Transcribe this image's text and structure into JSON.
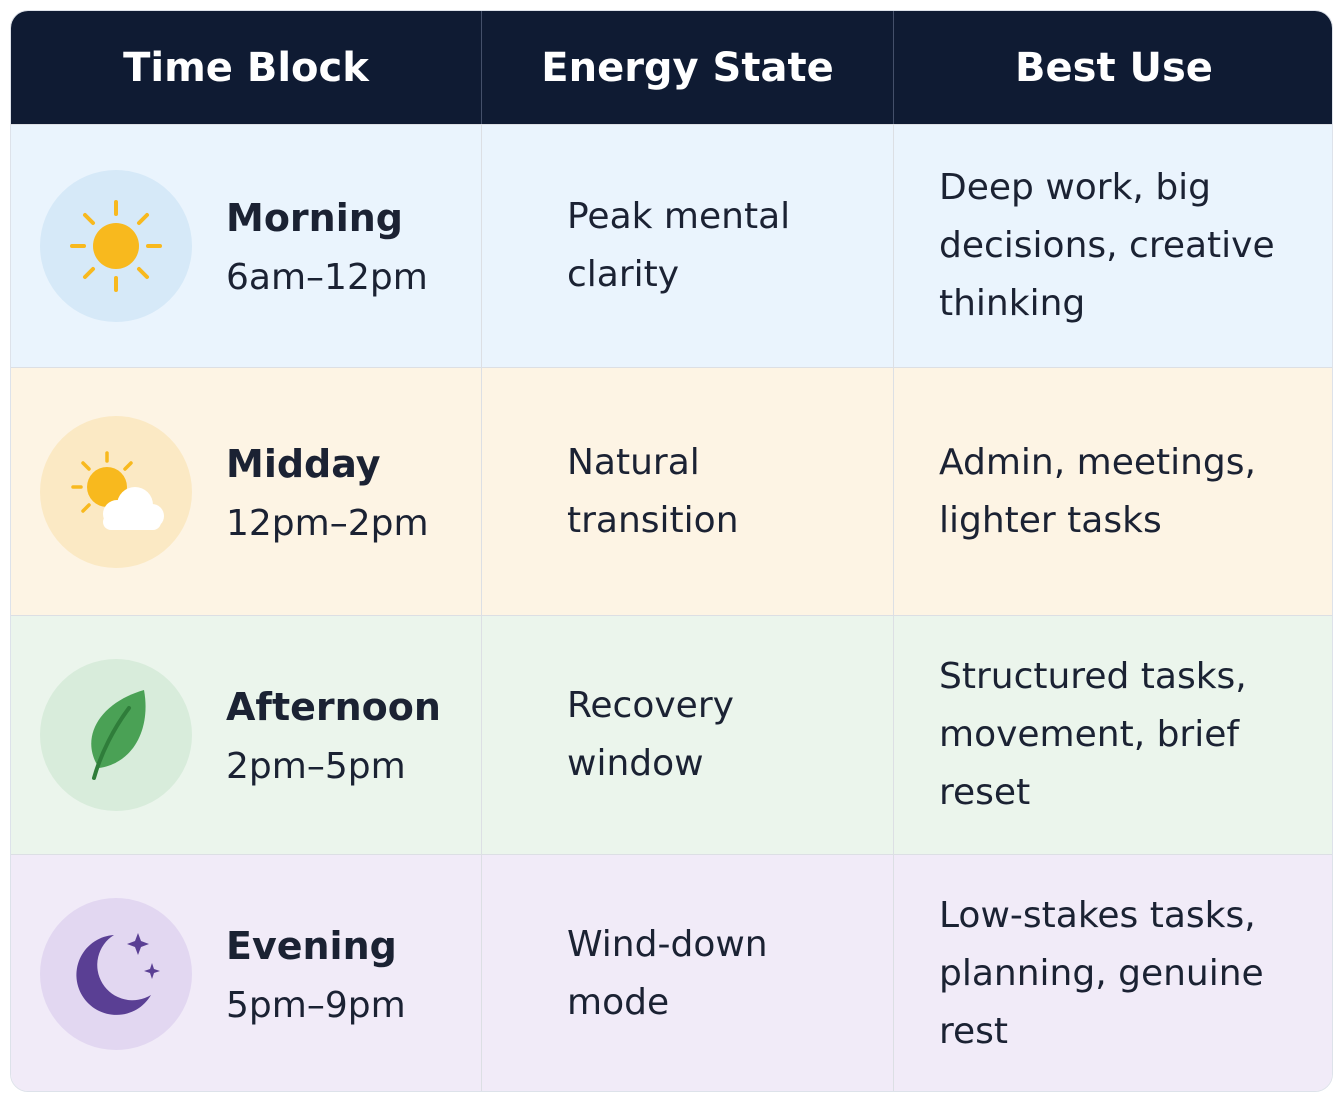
{
  "table": {
    "headers": [
      "Time Block",
      "Energy State",
      "Best Use"
    ],
    "rows": [
      {
        "block": "Morning",
        "time": "6am–12pm",
        "energy": "Peak mental clarity",
        "best_use": "Deep work, big decisions, creative thinking"
      },
      {
        "block": "Midday",
        "time": "12pm–2pm",
        "energy": "Natural transition",
        "best_use": "Admin, meetings, lighter tasks"
      },
      {
        "block": "Afternoon",
        "time": "2pm–5pm",
        "energy": "Recovery window",
        "best_use": "Structured tasks, movement, brief reset"
      },
      {
        "block": "Evening",
        "time": "5pm–9pm",
        "energy": "Wind-down mode",
        "best_use": "Low-stakes tasks, planning, genuine rest"
      }
    ]
  }
}
